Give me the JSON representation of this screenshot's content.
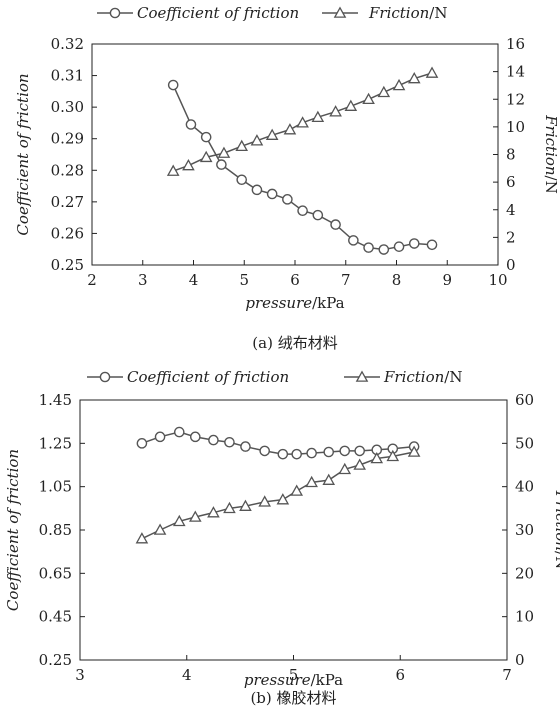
{
  "chart_data": [
    {
      "type": "line",
      "caption": "(a) 绒布材料",
      "xlabel": {
        "italic": "pressure",
        "unit": "/kPa"
      },
      "ylabel_left": "Coefficient of friction",
      "ylabel_right": {
        "italic": "Friction",
        "unit": "/N"
      },
      "xlim": [
        2,
        10
      ],
      "x_ticks": [
        "2",
        "3",
        "4",
        "5",
        "6",
        "7",
        "8",
        "9",
        "10"
      ],
      "ylim_left": [
        0.25,
        0.32
      ],
      "y_left_ticks": [
        "0.25",
        "0.26",
        "0.27",
        "0.28",
        "0.29",
        "0.30",
        "0.31",
        "0.32"
      ],
      "ylim_right": [
        0,
        16
      ],
      "y_right_ticks": [
        "0",
        "2",
        "4",
        "6",
        "8",
        "10",
        "12",
        "14",
        "16"
      ],
      "legend": {
        "position": "top",
        "items": [
          {
            "marker": "circle",
            "italic": "Coefficient of friction",
            "unit": ""
          },
          {
            "marker": "triangle",
            "italic": "Friction",
            "unit": "/N"
          }
        ]
      },
      "series": [
        {
          "name": "Coefficient of friction",
          "axis": "left",
          "marker": "circle",
          "x": [
            3.6,
            3.95,
            4.25,
            4.55,
            4.95,
            5.25,
            5.55,
            5.85,
            6.15,
            6.45,
            6.8,
            7.15,
            7.45,
            7.75,
            8.05,
            8.35,
            8.7
          ],
          "y": [
            0.307,
            0.2945,
            0.2905,
            0.2818,
            0.277,
            0.2738,
            0.2725,
            0.2708,
            0.2672,
            0.2658,
            0.2628,
            0.2578,
            0.2555,
            0.2549,
            0.2558,
            0.2568,
            0.2564
          ]
        },
        {
          "name": "Friction",
          "axis": "right",
          "marker": "triangle",
          "x": [
            3.6,
            3.9,
            4.25,
            4.6,
            4.95,
            5.25,
            5.55,
            5.9,
            6.15,
            6.45,
            6.8,
            7.1,
            7.45,
            7.75,
            8.05,
            8.35,
            8.7
          ],
          "y": [
            6.8,
            7.2,
            7.8,
            8.1,
            8.6,
            9.0,
            9.4,
            9.8,
            10.3,
            10.7,
            11.1,
            11.5,
            12.0,
            12.5,
            13.0,
            13.5,
            13.9
          ]
        }
      ]
    },
    {
      "type": "line",
      "caption": "(b) 橡胶材料",
      "xlabel": {
        "italic": "pressure",
        "unit": "/kPa"
      },
      "ylabel_left": "Coefficient of friction",
      "ylabel_right": {
        "italic": "Friction",
        "unit": "/N"
      },
      "xlim": [
        3,
        7
      ],
      "x_ticks": [
        "3",
        "4",
        "5",
        "6",
        "7"
      ],
      "ylim_left": [
        0.25,
        1.45
      ],
      "y_left_ticks": [
        "0.25",
        "0.45",
        "0.65",
        "0.85",
        "1.05",
        "1.25",
        "1.45"
      ],
      "ylim_right": [
        0,
        60
      ],
      "y_right_ticks": [
        "0",
        "10",
        "20",
        "30",
        "40",
        "50",
        "60"
      ],
      "legend": {
        "position": "top",
        "items": [
          {
            "marker": "circle",
            "italic": "Coefficient of friction",
            "unit": ""
          },
          {
            "marker": "triangle",
            "italic": "Friction",
            "unit": "/N"
          }
        ]
      },
      "series": [
        {
          "name": "Coefficient of friction",
          "axis": "left",
          "marker": "circle",
          "x": [
            3.58,
            3.75,
            3.93,
            4.08,
            4.25,
            4.4,
            4.55,
            4.73,
            4.9,
            5.03,
            5.17,
            5.33,
            5.48,
            5.62,
            5.78,
            5.93,
            6.13
          ],
          "y": [
            1.25,
            1.28,
            1.302,
            1.28,
            1.265,
            1.255,
            1.235,
            1.215,
            1.2,
            1.2,
            1.205,
            1.21,
            1.215,
            1.215,
            1.22,
            1.225,
            1.235
          ]
        },
        {
          "name": "Friction",
          "axis": "right",
          "marker": "triangle",
          "x": [
            3.58,
            3.75,
            3.93,
            4.08,
            4.25,
            4.4,
            4.55,
            4.73,
            4.9,
            5.03,
            5.17,
            5.33,
            5.48,
            5.62,
            5.78,
            5.93,
            6.13
          ],
          "y": [
            28,
            30,
            32,
            33,
            34,
            35,
            35.5,
            36.5,
            37,
            39,
            41,
            41.5,
            44,
            45,
            46.5,
            47,
            48
          ]
        }
      ]
    }
  ]
}
